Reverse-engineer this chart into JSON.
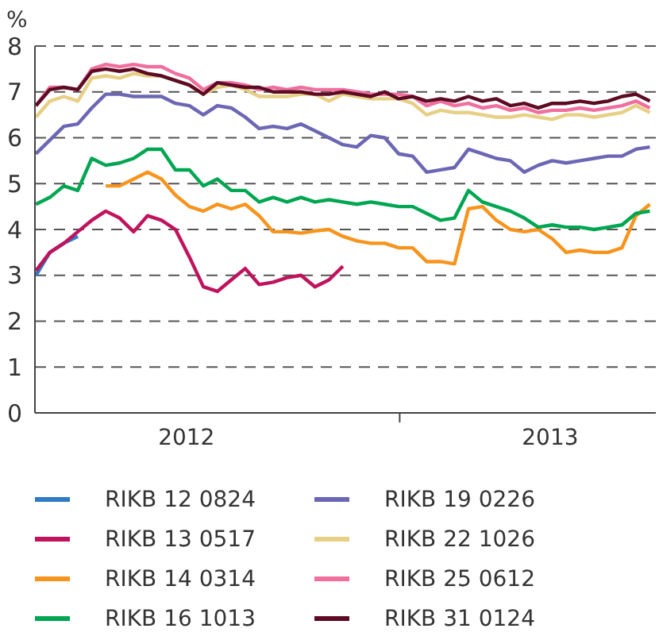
{
  "chart_data": {
    "type": "line",
    "ylabel": "%",
    "x": [
      "2012-01-02",
      "2012-01-16",
      "2012-01-30",
      "2012-02-13",
      "2012-02-27",
      "2012-03-12",
      "2012-03-26",
      "2012-04-09",
      "2012-04-23",
      "2012-05-07",
      "2012-05-21",
      "2012-06-04",
      "2012-06-18",
      "2012-07-02",
      "2012-07-16",
      "2012-07-30",
      "2012-08-13",
      "2012-08-27",
      "2012-09-10",
      "2012-09-24",
      "2012-10-08",
      "2012-10-22",
      "2012-11-05",
      "2012-11-19",
      "2012-12-03",
      "2012-12-17",
      "2012-12-31",
      "2013-01-14",
      "2013-01-28",
      "2013-02-11",
      "2013-02-25",
      "2013-03-11",
      "2013-03-25",
      "2013-04-08",
      "2013-04-22",
      "2013-05-06",
      "2013-05-20",
      "2013-06-03",
      "2013-06-17",
      "2013-07-01",
      "2013-07-15",
      "2013-07-29",
      "2013-08-12",
      "2013-08-26",
      "2013-09-09"
    ],
    "series": [
      {
        "name": "RIKB 12 0824",
        "color": "#2f7bc4",
        "values": [
          3.0,
          3.5,
          3.7,
          3.85,
          null,
          null,
          null,
          null,
          null,
          null,
          null,
          null,
          null,
          null,
          null,
          null,
          null,
          null,
          null,
          null,
          null,
          null,
          null,
          null,
          null,
          null,
          null,
          null,
          null,
          null,
          null,
          null,
          null,
          null,
          null,
          null,
          null,
          null,
          null,
          null,
          null,
          null,
          null,
          null,
          null
        ]
      },
      {
        "name": "RIKB 13 0517",
        "color": "#c0135d",
        "values": [
          3.1,
          3.5,
          3.7,
          3.95,
          4.2,
          4.4,
          4.25,
          3.95,
          4.3,
          4.2,
          4.0,
          3.4,
          2.75,
          2.65,
          2.9,
          3.15,
          2.8,
          2.85,
          2.95,
          3.0,
          2.75,
          2.9,
          3.2,
          null,
          null,
          null,
          null,
          null,
          null,
          null,
          null,
          null,
          null,
          null,
          null,
          null,
          null,
          null,
          null,
          null,
          null,
          null,
          null,
          null,
          null
        ]
      },
      {
        "name": "RIKB 14 0314",
        "color": "#f7941d",
        "values": [
          null,
          null,
          null,
          null,
          null,
          4.95,
          4.95,
          5.1,
          5.25,
          5.1,
          4.75,
          4.5,
          4.4,
          4.55,
          4.45,
          4.55,
          4.3,
          3.95,
          3.95,
          3.92,
          3.97,
          4.0,
          3.85,
          3.75,
          3.7,
          3.7,
          3.6,
          3.6,
          3.3,
          3.3,
          3.25,
          4.45,
          4.5,
          4.2,
          4.0,
          3.95,
          4.0,
          3.8,
          3.5,
          3.55,
          3.5,
          3.5,
          3.6,
          4.3,
          4.55
        ]
      },
      {
        "name": "RIKB 16 1013",
        "color": "#00a651",
        "values": [
          4.55,
          4.7,
          4.95,
          4.85,
          5.55,
          5.4,
          5.45,
          5.55,
          5.75,
          5.75,
          5.3,
          5.3,
          4.95,
          5.1,
          4.85,
          4.85,
          4.6,
          4.7,
          4.6,
          4.7,
          4.6,
          4.65,
          4.6,
          4.55,
          4.6,
          4.55,
          4.5,
          4.5,
          4.35,
          4.2,
          4.25,
          4.85,
          4.6,
          4.5,
          4.4,
          4.25,
          4.05,
          4.1,
          4.05,
          4.05,
          4.0,
          4.05,
          4.1,
          4.35,
          4.4
        ]
      },
      {
        "name": "RIKB 19 0226",
        "color": "#6b67b4",
        "values": [
          5.65,
          5.95,
          6.25,
          6.3,
          6.65,
          6.95,
          6.95,
          6.9,
          6.9,
          6.9,
          6.75,
          6.7,
          6.5,
          6.7,
          6.65,
          6.45,
          6.2,
          6.25,
          6.2,
          6.3,
          6.15,
          6.0,
          5.85,
          5.8,
          6.05,
          6.0,
          5.65,
          5.6,
          5.25,
          5.3,
          5.35,
          5.75,
          5.65,
          5.55,
          5.5,
          5.25,
          5.4,
          5.5,
          5.45,
          5.5,
          5.55,
          5.6,
          5.6,
          5.75,
          5.8
        ]
      },
      {
        "name": "RIKB 22 1026",
        "color": "#e8cf86",
        "values": [
          6.45,
          6.8,
          6.9,
          6.8,
          7.3,
          7.35,
          7.3,
          7.4,
          7.35,
          7.35,
          7.25,
          7.15,
          6.95,
          7.1,
          7.15,
          7.05,
          6.9,
          6.9,
          6.9,
          6.95,
          6.95,
          6.8,
          6.95,
          6.9,
          6.85,
          6.85,
          6.85,
          6.75,
          6.5,
          6.6,
          6.55,
          6.55,
          6.5,
          6.45,
          6.45,
          6.5,
          6.45,
          6.4,
          6.5,
          6.5,
          6.45,
          6.5,
          6.55,
          6.7,
          6.55
        ]
      },
      {
        "name": "RIKB 25 0612",
        "color": "#f06f9e",
        "values": [
          6.7,
          7.1,
          7.1,
          7.05,
          7.5,
          7.6,
          7.55,
          7.6,
          7.55,
          7.55,
          7.4,
          7.3,
          7.05,
          7.2,
          7.2,
          7.15,
          7.05,
          7.1,
          7.05,
          7.1,
          7.05,
          7.05,
          7.05,
          7.0,
          6.95,
          6.95,
          6.95,
          6.9,
          6.7,
          6.8,
          6.7,
          6.75,
          6.65,
          6.7,
          6.6,
          6.65,
          6.55,
          6.6,
          6.6,
          6.65,
          6.6,
          6.65,
          6.7,
          6.8,
          6.65
        ]
      },
      {
        "name": "RIKB 31 0124",
        "color": "#5c0b23",
        "values": [
          6.7,
          7.05,
          7.1,
          7.05,
          7.45,
          7.5,
          7.45,
          7.5,
          7.4,
          7.35,
          7.25,
          7.15,
          6.95,
          7.2,
          7.15,
          7.1,
          7.1,
          7.0,
          7.0,
          7.0,
          6.95,
          6.95,
          7.0,
          6.95,
          6.9,
          7.0,
          6.85,
          6.9,
          6.8,
          6.85,
          6.8,
          6.9,
          6.8,
          6.85,
          6.7,
          6.75,
          6.65,
          6.75,
          6.75,
          6.8,
          6.75,
          6.8,
          6.9,
          6.95,
          6.8
        ]
      }
    ],
    "xlim": [
      "2012-01-01",
      "2013-09-15"
    ],
    "xticks": [
      {
        "value": "2012-06-01",
        "label": "2012"
      },
      {
        "value": "2013-01-01",
        "label": null
      },
      {
        "value": "2013-06-01",
        "label": "2013"
      }
    ],
    "ylim": [
      0,
      8
    ],
    "yticks": [
      0,
      1,
      2,
      3,
      4,
      5,
      6,
      7,
      8
    ],
    "grid": "y",
    "legend": "bottom",
    "marker": "none",
    "line_style": "solid"
  }
}
